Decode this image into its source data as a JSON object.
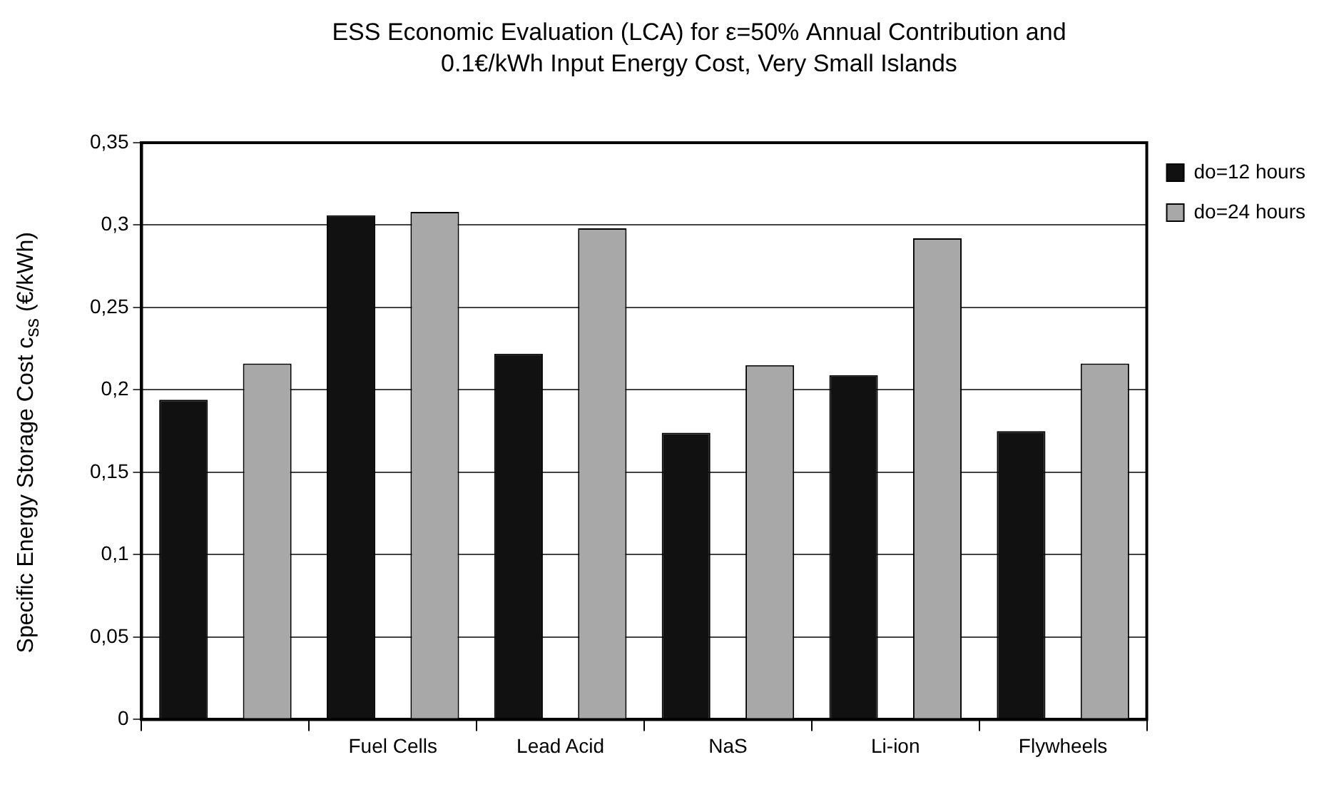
{
  "chart_data": {
    "type": "bar",
    "title": "ESS Economic Evaluation (LCA) for ε=50% Annual Contribution and 0.1€/kWh Input Energy Cost, Very Small Islands",
    "ylabel": "Specific Energy Storage Cost c$_{ss}$ (€/kWh)",
    "categories": [
      null,
      "Fuel Cells",
      "Lead Acid",
      "NaS",
      "Li-ion",
      "Flywheels"
    ],
    "series": [
      {
        "name": "do=12 hours",
        "color": "#111111",
        "values": [
          0.194,
          0.306,
          0.222,
          0.174,
          0.209,
          0.175
        ]
      },
      {
        "name": "do=24 hours",
        "color": "#a8a8a8",
        "values": [
          0.216,
          0.308,
          0.298,
          0.215,
          0.292,
          0.216
        ]
      }
    ],
    "ylim": [
      0,
      0.35
    ],
    "yticks": [
      {
        "value": 0,
        "label": "0"
      },
      {
        "value": 0.05,
        "label": "0,05"
      },
      {
        "value": 0.1,
        "label": "0,1"
      },
      {
        "value": 0.15,
        "label": "0,15"
      },
      {
        "value": 0.2,
        "label": "0,2"
      },
      {
        "value": 0.25,
        "label": "0,25"
      },
      {
        "value": 0.3,
        "label": "0,3"
      },
      {
        "value": 0.35,
        "label": "0,35"
      }
    ],
    "grid": "y",
    "legend": "top right"
  }
}
